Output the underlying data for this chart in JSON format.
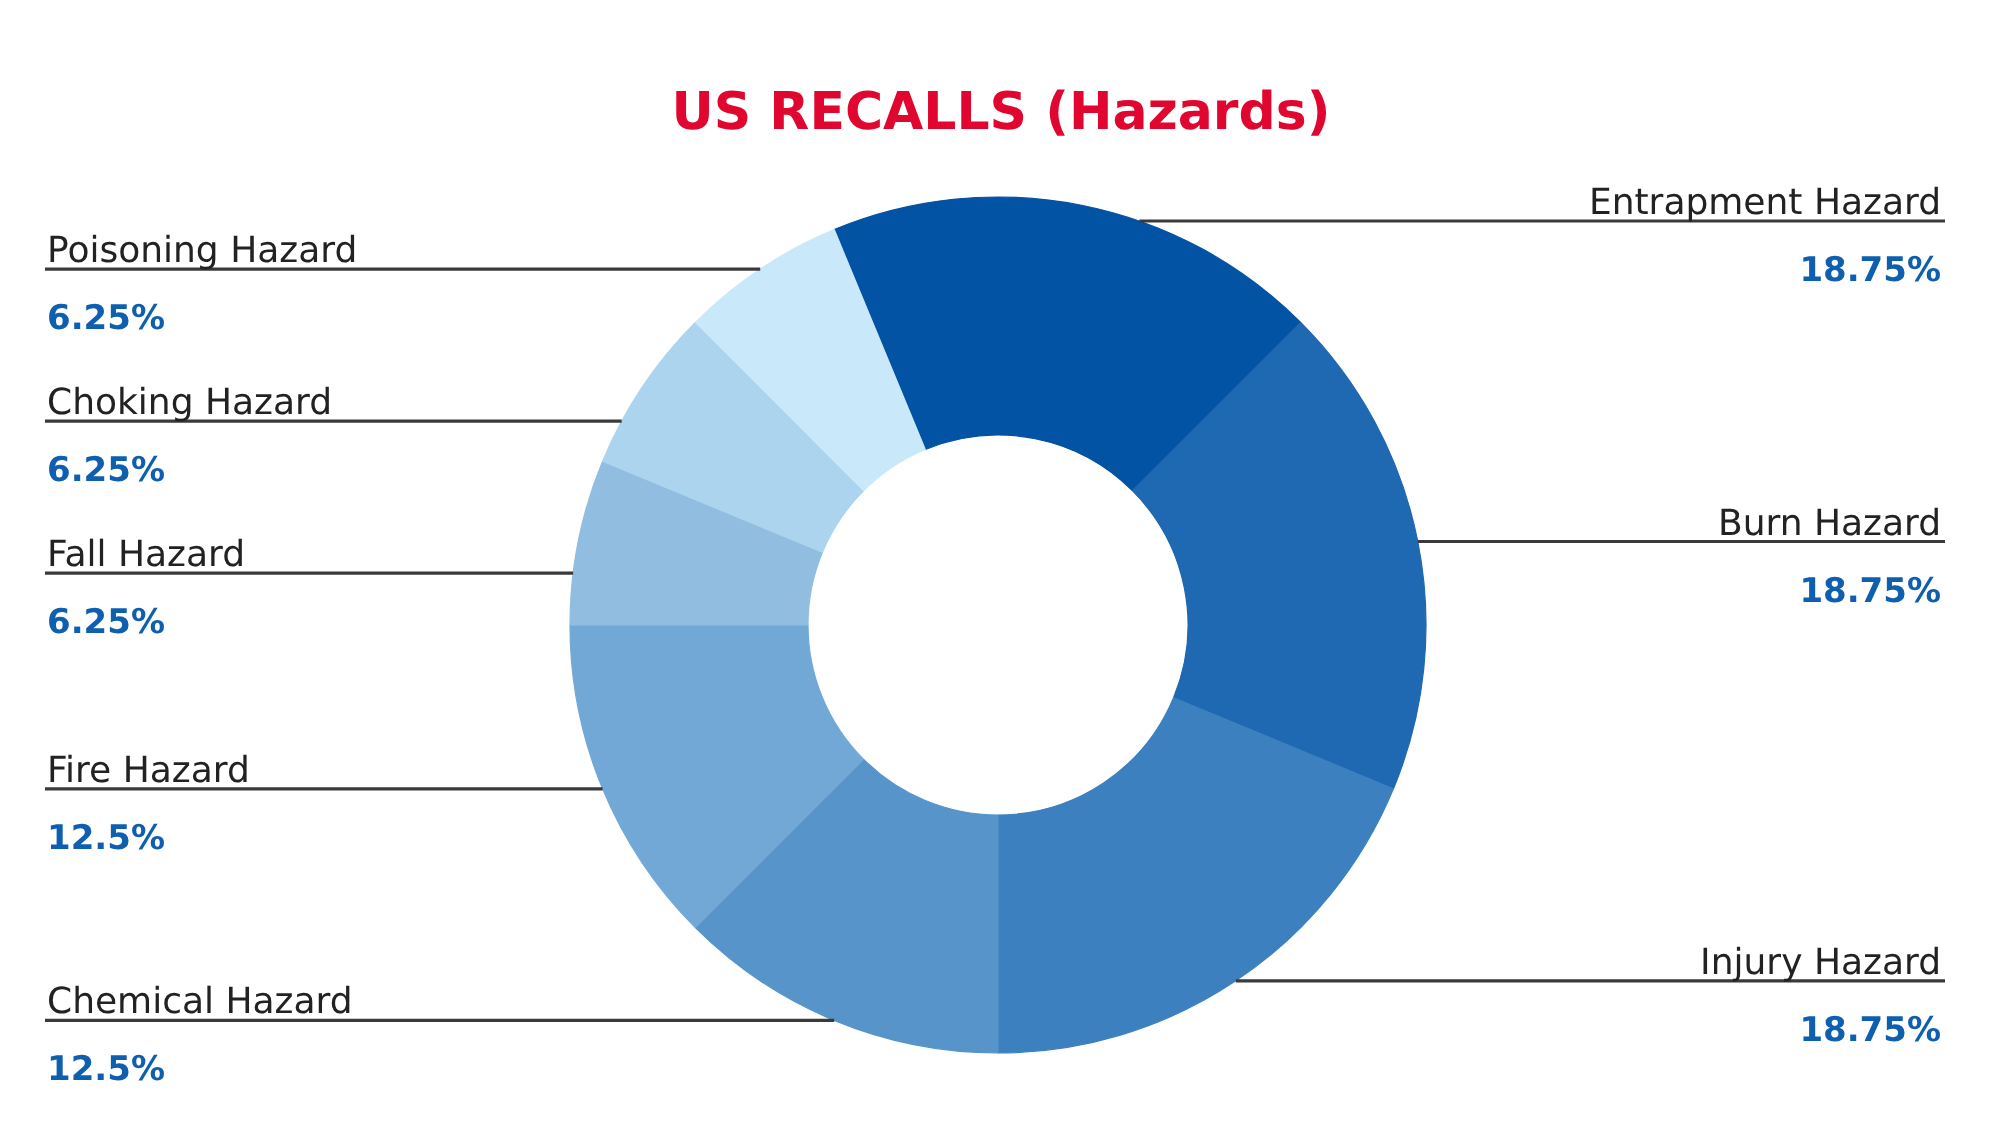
{
  "chart_data": {
    "type": "donut",
    "title": "US RECALLS (Hazards)",
    "categories": [
      "Entrapment Hazard",
      "Burn Hazard",
      "Injury Hazard",
      "Chemical Hazard",
      "Fire Hazard",
      "Fall Hazard",
      "Choking Hazard",
      "Poisoning Hazard"
    ],
    "values": [
      18.75,
      18.75,
      18.75,
      12.5,
      12.5,
      6.25,
      6.25,
      6.25
    ],
    "colors": [
      "#0353a4",
      "#1f68b2",
      "#3c80bf",
      "#5794c9",
      "#72a8d6",
      "#91bee0",
      "#acd4ee",
      "#c9e9fa"
    ],
    "value_labels": [
      "18.75%",
      "18.75%",
      "18.75%",
      "12.5%",
      "12.5%",
      "6.25%",
      "6.25%",
      "6.25%"
    ]
  }
}
